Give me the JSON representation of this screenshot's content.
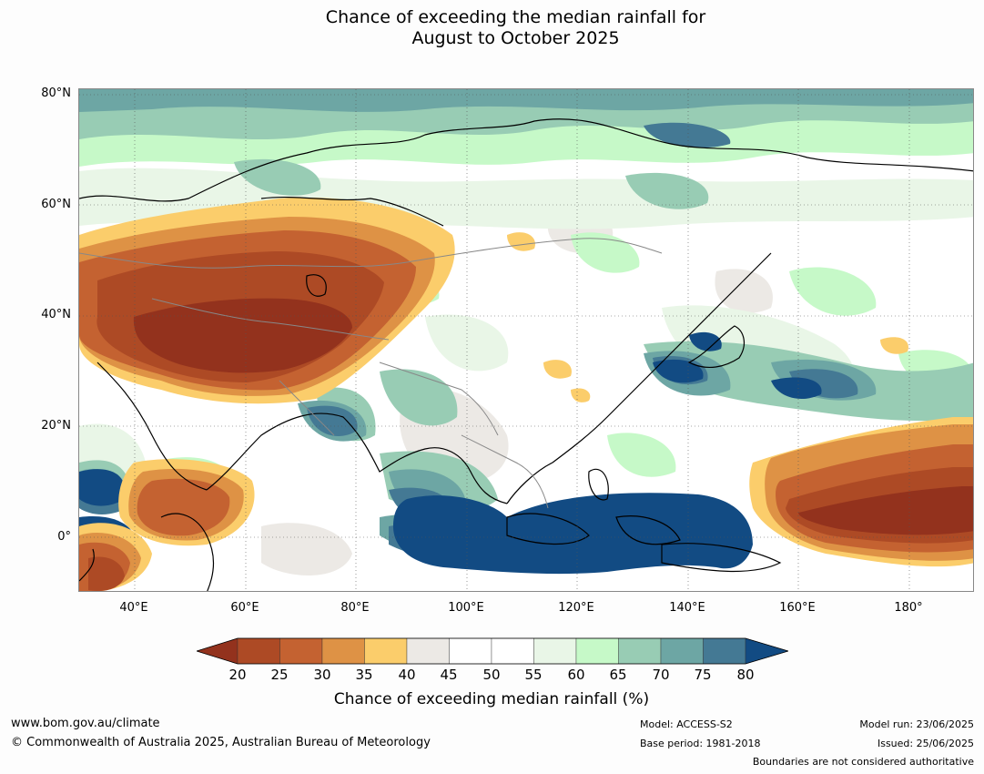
{
  "title_line1": "Chance of exceeding the median rainfall for",
  "title_line2": "August to October 2025",
  "lat_labels": [
    "80°N",
    "60°N",
    "40°N",
    "20°N",
    "0°"
  ],
  "lon_labels": [
    "40°E",
    "60°E",
    "80°E",
    "100°E",
    "120°E",
    "140°E",
    "160°E",
    "180°"
  ],
  "colorbar": {
    "ticks": [
      "20",
      "25",
      "30",
      "35",
      "40",
      "45",
      "50",
      "55",
      "60",
      "65",
      "70",
      "75",
      "80"
    ],
    "colors": {
      "below_20": "#93321d",
      "20-25": "#ad4a25",
      "25-30": "#c46231",
      "30-35": "#de9245",
      "35-40": "#fbcd6b",
      "40-45": "#ece9e5",
      "45-50": "#ffffff",
      "50-55": "#ffffff",
      "55-60": "#e9f6e7",
      "60-65": "#c6f9c8",
      "65-70": "#98ccb4",
      "70-75": "#6da6a4",
      "75-80": "#447994",
      "above_80": "#124b83"
    },
    "label": "Chance of exceeding median rainfall (%)"
  },
  "footer": {
    "url": "www.bom.gov.au/climate",
    "copyright": "© Commonwealth of Australia 2025, Australian Bureau of Meteorology",
    "model": "Model: ACCESS-S2",
    "base_period": "Base period: 1981-2018",
    "model_run": "Model run: 23/06/2025",
    "issued": "Issued: 25/06/2025",
    "disclaimer": "Boundaries are not considered authoritative"
  }
}
